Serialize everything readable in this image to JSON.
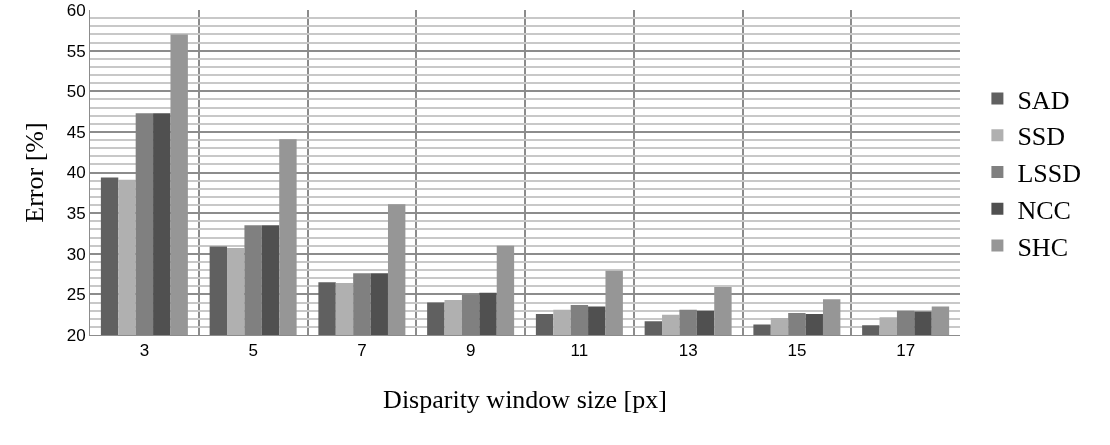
{
  "chart_data": {
    "type": "bar",
    "xlabel": "Disparity window size [px]",
    "ylabel": "Error [%]",
    "categories": [
      "3",
      "5",
      "7",
      "9",
      "11",
      "13",
      "15",
      "17"
    ],
    "series": [
      {
        "name": "SAD",
        "color": "#606060",
        "values": [
          39.4,
          30.9,
          26.5,
          24.0,
          22.6,
          21.7,
          21.3,
          21.2
        ]
      },
      {
        "name": "SSD",
        "color": "#b0b0b0",
        "values": [
          39.1,
          30.7,
          26.4,
          24.3,
          23.1,
          22.5,
          22.1,
          22.2
        ]
      },
      {
        "name": "LSSD",
        "color": "#808080",
        "values": [
          47.3,
          33.5,
          27.6,
          25.0,
          23.7,
          23.1,
          22.7,
          23.0
        ]
      },
      {
        "name": "NCC",
        "color": "#505050",
        "values": [
          47.3,
          33.5,
          27.6,
          25.2,
          23.5,
          23.0,
          22.6,
          22.9
        ]
      },
      {
        "name": "SHC",
        "color": "#969696",
        "values": [
          57.0,
          44.1,
          36.1,
          31.0,
          27.9,
          25.9,
          24.4,
          23.5
        ]
      }
    ],
    "ylim": [
      20,
      60
    ],
    "yticks": [
      20,
      25,
      30,
      35,
      40,
      45,
      50,
      55,
      60
    ],
    "grid": true,
    "legend": "right"
  }
}
